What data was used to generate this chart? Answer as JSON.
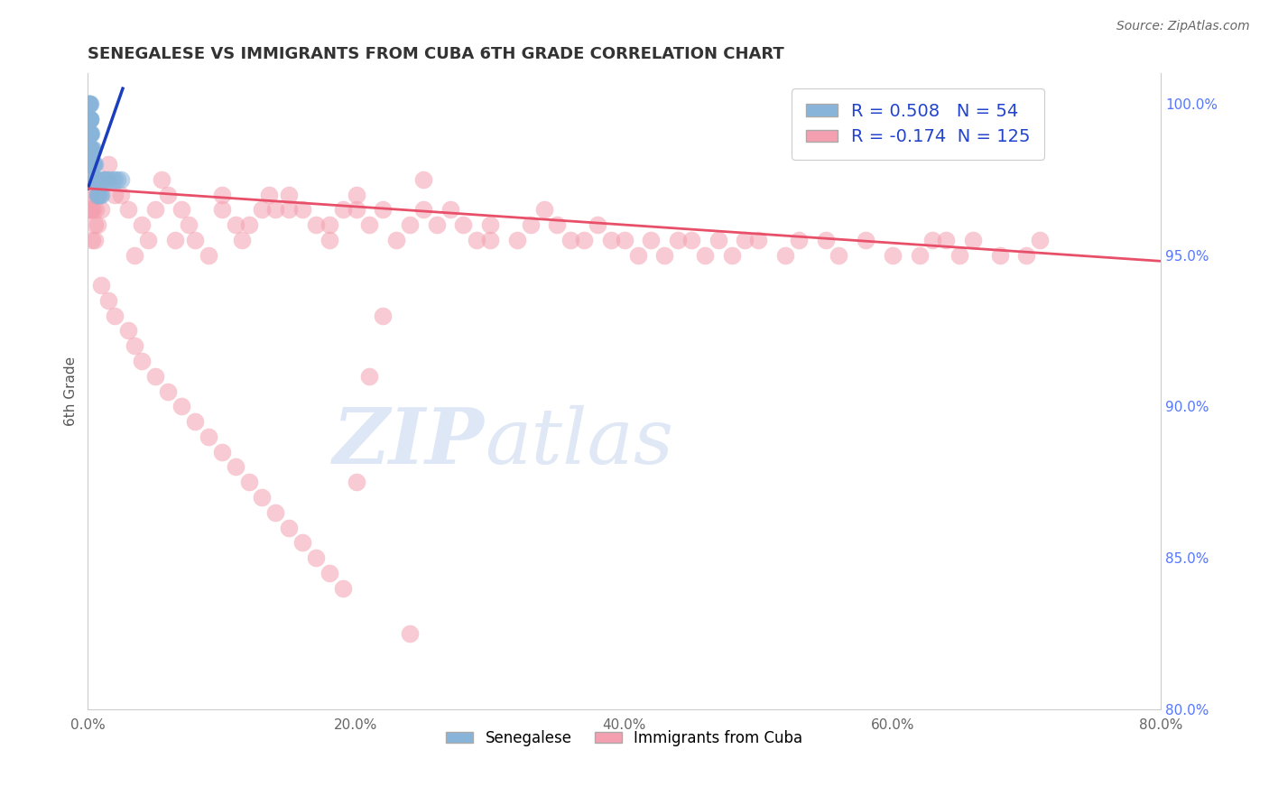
{
  "title": "SENEGALESE VS IMMIGRANTS FROM CUBA 6TH GRADE CORRELATION CHART",
  "source_text": "Source: ZipAtlas.com",
  "ylabel": "6th Grade",
  "xlim": [
    0.0,
    80.0
  ],
  "ylim": [
    80.0,
    101.0
  ],
  "xticks": [
    0.0,
    20.0,
    40.0,
    60.0,
    80.0
  ],
  "yticks_right": [
    80.0,
    85.0,
    90.0,
    95.0,
    100.0
  ],
  "blue_R": 0.508,
  "blue_N": 54,
  "pink_R": -0.174,
  "pink_N": 125,
  "blue_color": "#89B4D9",
  "pink_color": "#F4A0B0",
  "blue_line_color": "#1A3EBD",
  "pink_line_color": "#E8506A",
  "legend_blue_label": "Senegalese",
  "legend_pink_label": "Immigrants from Cuba",
  "blue_scatter_x": [
    0.05,
    0.05,
    0.05,
    0.05,
    0.05,
    0.08,
    0.08,
    0.08,
    0.08,
    0.1,
    0.1,
    0.1,
    0.1,
    0.1,
    0.12,
    0.12,
    0.12,
    0.15,
    0.15,
    0.15,
    0.15,
    0.18,
    0.18,
    0.18,
    0.2,
    0.2,
    0.2,
    0.25,
    0.25,
    0.3,
    0.3,
    0.35,
    0.35,
    0.4,
    0.4,
    0.45,
    0.5,
    0.5,
    0.55,
    0.6,
    0.65,
    0.7,
    0.75,
    0.8,
    0.9,
    1.0,
    1.1,
    1.2,
    1.4,
    1.5,
    1.8,
    2.0,
    2.2,
    2.5
  ],
  "blue_scatter_y": [
    100.0,
    99.5,
    99.0,
    98.5,
    98.0,
    100.0,
    99.5,
    99.0,
    98.5,
    100.0,
    99.5,
    99.0,
    98.5,
    98.0,
    100.0,
    99.5,
    99.0,
    100.0,
    99.5,
    99.0,
    98.5,
    99.5,
    99.0,
    98.5,
    99.5,
    99.0,
    98.5,
    99.0,
    98.5,
    98.5,
    98.0,
    98.5,
    98.0,
    98.0,
    97.5,
    98.0,
    98.0,
    97.5,
    97.5,
    97.5,
    97.5,
    97.0,
    97.0,
    97.0,
    97.0,
    97.0,
    97.5,
    97.5,
    97.5,
    97.5,
    97.5,
    97.5,
    97.5,
    97.5
  ],
  "pink_scatter_x": [
    0.05,
    0.05,
    0.05,
    0.08,
    0.08,
    0.1,
    0.1,
    0.12,
    0.12,
    0.15,
    0.15,
    0.2,
    0.2,
    0.25,
    0.3,
    0.3,
    0.4,
    0.5,
    0.5,
    0.6,
    0.7,
    0.8,
    1.0,
    1.2,
    1.5,
    2.0,
    2.5,
    3.0,
    3.5,
    4.0,
    4.5,
    5.0,
    5.5,
    6.0,
    6.5,
    7.0,
    7.5,
    8.0,
    9.0,
    10.0,
    10.0,
    11.0,
    11.5,
    12.0,
    13.0,
    13.5,
    14.0,
    15.0,
    15.0,
    16.0,
    17.0,
    18.0,
    18.0,
    19.0,
    20.0,
    20.0,
    21.0,
    22.0,
    23.0,
    24.0,
    25.0,
    25.0,
    26.0,
    27.0,
    28.0,
    29.0,
    30.0,
    30.0,
    32.0,
    33.0,
    34.0,
    35.0,
    36.0,
    37.0,
    38.0,
    39.0,
    40.0,
    41.0,
    42.0,
    43.0,
    44.0,
    45.0,
    46.0,
    47.0,
    48.0,
    49.0,
    50.0,
    52.0,
    53.0,
    55.0,
    56.0,
    58.0,
    60.0,
    62.0,
    63.0,
    64.0,
    65.0,
    66.0,
    68.0,
    70.0,
    71.0,
    1.0,
    1.5,
    2.0,
    3.0,
    3.5,
    4.0,
    5.0,
    6.0,
    7.0,
    8.0,
    9.0,
    10.0,
    11.0,
    12.0,
    13.0,
    14.0,
    15.0,
    16.0,
    17.0,
    18.0,
    19.0,
    20.0,
    21.0,
    22.0,
    24.0
  ],
  "pink_scatter_y": [
    98.5,
    97.5,
    96.5,
    98.0,
    97.0,
    97.5,
    96.5,
    97.5,
    96.5,
    97.5,
    96.5,
    97.5,
    96.5,
    97.0,
    96.5,
    95.5,
    96.5,
    96.0,
    95.5,
    96.5,
    96.0,
    97.0,
    96.5,
    97.5,
    98.0,
    97.0,
    97.0,
    96.5,
    95.0,
    96.0,
    95.5,
    96.5,
    97.5,
    97.0,
    95.5,
    96.5,
    96.0,
    95.5,
    95.0,
    97.0,
    96.5,
    96.0,
    95.5,
    96.0,
    96.5,
    97.0,
    96.5,
    96.5,
    97.0,
    96.5,
    96.0,
    95.5,
    96.0,
    96.5,
    96.5,
    97.0,
    96.0,
    96.5,
    95.5,
    96.0,
    97.5,
    96.5,
    96.0,
    96.5,
    96.0,
    95.5,
    95.5,
    96.0,
    95.5,
    96.0,
    96.5,
    96.0,
    95.5,
    95.5,
    96.0,
    95.5,
    95.5,
    95.0,
    95.5,
    95.0,
    95.5,
    95.5,
    95.0,
    95.5,
    95.0,
    95.5,
    95.5,
    95.0,
    95.5,
    95.5,
    95.0,
    95.5,
    95.0,
    95.0,
    95.5,
    95.5,
    95.0,
    95.5,
    95.0,
    95.0,
    95.5,
    94.0,
    93.5,
    93.0,
    92.5,
    92.0,
    91.5,
    91.0,
    90.5,
    90.0,
    89.5,
    89.0,
    88.5,
    88.0,
    87.5,
    87.0,
    86.5,
    86.0,
    85.5,
    85.0,
    84.5,
    84.0,
    87.5,
    91.0,
    93.0,
    82.5
  ],
  "blue_trendline_x": [
    0.0,
    2.6
  ],
  "blue_trendline_y": [
    97.2,
    100.5
  ],
  "pink_trendline_x": [
    0.0,
    80.0
  ],
  "pink_trendline_y": [
    97.2,
    94.8
  ],
  "watermark_zip": "ZIP",
  "watermark_atlas": "atlas",
  "background_color": "#FFFFFF",
  "grid_color": "#CCCCCC"
}
